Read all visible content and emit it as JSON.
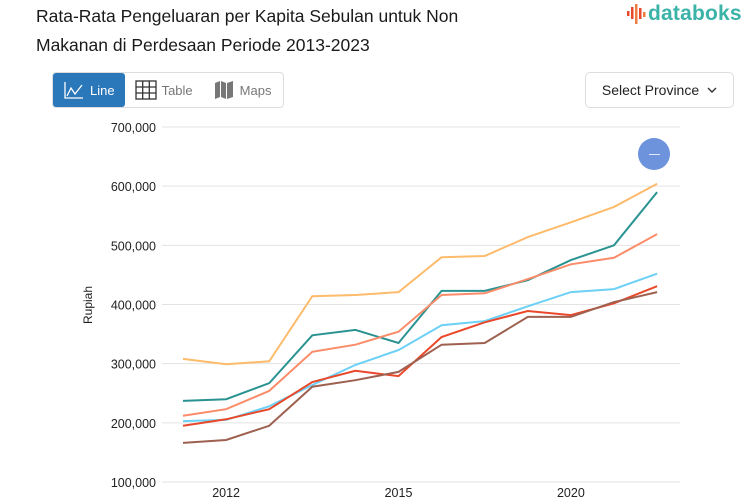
{
  "header": {
    "title": "Rata-Rata Pengeluaran per Kapita Sebulan untuk Non Makanan di Perdesaan Periode 2013-2023",
    "logo_text": "databoks"
  },
  "view_tabs": [
    {
      "label": "Line",
      "icon": "line-chart-icon",
      "active": true
    },
    {
      "label": "Table",
      "icon": "table-grid-icon",
      "active": false
    },
    {
      "label": "Maps",
      "icon": "map-icon",
      "active": false
    }
  ],
  "province_select": {
    "label": "Select Province"
  },
  "colors": {
    "active_tab": "#2a77b9",
    "logo": "#3bb3a8",
    "zoom_button": "#6c93dc"
  },
  "chart_data": {
    "type": "line",
    "title": "",
    "xlabel": "",
    "ylabel": "Rupiah",
    "ylim": [
      100000,
      700000
    ],
    "yticks": [
      "100,000",
      "200,000",
      "300,000",
      "400,000",
      "500,000",
      "600,000",
      "700,000"
    ],
    "ytick_values": [
      100000,
      200000,
      300000,
      400000,
      500000,
      600000,
      700000
    ],
    "x_tick_labels": [
      {
        "index": 1,
        "label": "2012"
      },
      {
        "index": 5,
        "label": "2015"
      },
      {
        "index": 9,
        "label": "2020"
      }
    ],
    "points_per_series": 12,
    "grid": "horizontal",
    "legend": "none",
    "series": [
      {
        "color": "#fdbb6b",
        "values": [
          308000,
          299000,
          304000,
          414000,
          416000,
          421000,
          480000,
          482000,
          514000,
          539000,
          565000,
          604000
        ]
      },
      {
        "color": "#2a9391",
        "values": [
          237000,
          240000,
          267000,
          348000,
          357000,
          335000,
          423000,
          423000,
          441000,
          475000,
          500000,
          590000
        ]
      },
      {
        "color": "#fa8c6a",
        "values": [
          212000,
          223000,
          254000,
          320000,
          332000,
          354000,
          416000,
          419000,
          443000,
          468000,
          479000,
          519000
        ]
      },
      {
        "color": "#6dd0f5",
        "values": [
          203000,
          205000,
          228000,
          264000,
          298000,
          323000,
          365000,
          372000,
          397000,
          421000,
          426000,
          452000
        ]
      },
      {
        "color": "#e9482a",
        "values": [
          195000,
          206000,
          223000,
          269000,
          288000,
          279000,
          345000,
          370000,
          389000,
          382000,
          402000,
          431000
        ]
      },
      {
        "color": "#9e6150",
        "values": [
          166000,
          171000,
          195000,
          261000,
          272000,
          286000,
          332000,
          335000,
          379000,
          379000,
          404000,
          421000
        ]
      }
    ]
  }
}
